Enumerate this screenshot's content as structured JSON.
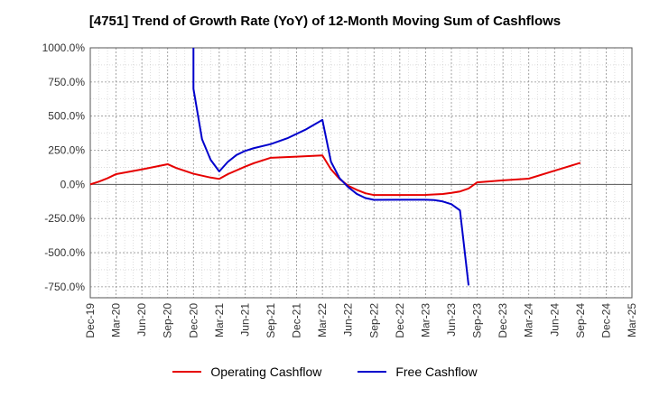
{
  "chart_data": {
    "type": "line",
    "title": "[4751]  Trend of Growth Rate (YoY) of 12-Month Moving Sum of Cashflows",
    "xlabel": "",
    "ylabel": "",
    "x_ticks": [
      "Dec-19",
      "Mar-20",
      "Jun-20",
      "Sep-20",
      "Dec-20",
      "Mar-21",
      "Jun-21",
      "Sep-21",
      "Dec-21",
      "Mar-22",
      "Jun-22",
      "Sep-22",
      "Dec-22",
      "Mar-23",
      "Jun-23",
      "Sep-23",
      "Dec-23",
      "Mar-24",
      "Jun-24",
      "Sep-24",
      "Dec-24",
      "Mar-25"
    ],
    "y_ticks": [
      "1000.0%",
      "750.0%",
      "500.0%",
      "250.0%",
      "0.0%",
      "-250.0%",
      "-500.0%",
      "-750.0%"
    ],
    "y_tick_values": [
      1000,
      750,
      500,
      250,
      0,
      -250,
      -500,
      -750
    ],
    "ylim": [
      -830,
      1000
    ],
    "grid": true,
    "legend_position": "bottom",
    "series": [
      {
        "name": "Operating Cashflow",
        "color": "#e60000",
        "points": [
          [
            "Dec-19",
            0
          ],
          [
            "Jan-20",
            20
          ],
          [
            "Feb-20",
            45
          ],
          [
            "Mar-20",
            75
          ],
          [
            "Jun-20",
            110
          ],
          [
            "Sep-20",
            148
          ],
          [
            "Oct-20",
            120
          ],
          [
            "Dec-20",
            78
          ],
          [
            "Feb-21",
            50
          ],
          [
            "Mar-21",
            40
          ],
          [
            "Apr-21",
            75
          ],
          [
            "Jun-21",
            130
          ],
          [
            "Jul-21",
            155
          ],
          [
            "Sep-21",
            195
          ],
          [
            "Dec-21",
            203
          ],
          [
            "Mar-22",
            212
          ],
          [
            "Apr-22",
            110
          ],
          [
            "May-22",
            40
          ],
          [
            "Jun-22",
            -10
          ],
          [
            "Jul-22",
            -40
          ],
          [
            "Aug-22",
            -65
          ],
          [
            "Sep-22",
            -78
          ],
          [
            "Dec-22",
            -78
          ],
          [
            "Mar-23",
            -77
          ],
          [
            "May-23",
            -70
          ],
          [
            "Jun-23",
            -62
          ],
          [
            "Jul-23",
            -52
          ],
          [
            "Aug-23",
            -30
          ],
          [
            "Sep-23",
            15
          ],
          [
            "Dec-23",
            30
          ],
          [
            "Mar-24",
            42
          ],
          [
            "Jun-24",
            100
          ],
          [
            "Sep-24",
            158
          ]
        ]
      },
      {
        "name": "Free Cashflow",
        "color": "#0000cc",
        "points": [
          [
            "Dec-20",
            1000
          ],
          [
            "Dec-20",
            700
          ],
          [
            "Jan-21",
            330
          ],
          [
            "Feb-21",
            180
          ],
          [
            "Mar-21",
            95
          ],
          [
            "Apr-21",
            165
          ],
          [
            "May-21",
            215
          ],
          [
            "Jun-21",
            245
          ],
          [
            "Jul-21",
            265
          ],
          [
            "Sep-21",
            295
          ],
          [
            "Nov-21",
            340
          ],
          [
            "Jan-22",
            400
          ],
          [
            "Mar-22",
            472
          ],
          [
            "Apr-22",
            165
          ],
          [
            "May-22",
            45
          ],
          [
            "Jun-22",
            -20
          ],
          [
            "Jul-22",
            -70
          ],
          [
            "Aug-22",
            -100
          ],
          [
            "Sep-22",
            -113
          ],
          [
            "Dec-22",
            -112
          ],
          [
            "Mar-23",
            -112
          ],
          [
            "Apr-23",
            -115
          ],
          [
            "May-23",
            -125
          ],
          [
            "Jun-23",
            -145
          ],
          [
            "Jul-23",
            -190
          ],
          [
            "Aug-23",
            -740
          ]
        ]
      }
    ]
  }
}
